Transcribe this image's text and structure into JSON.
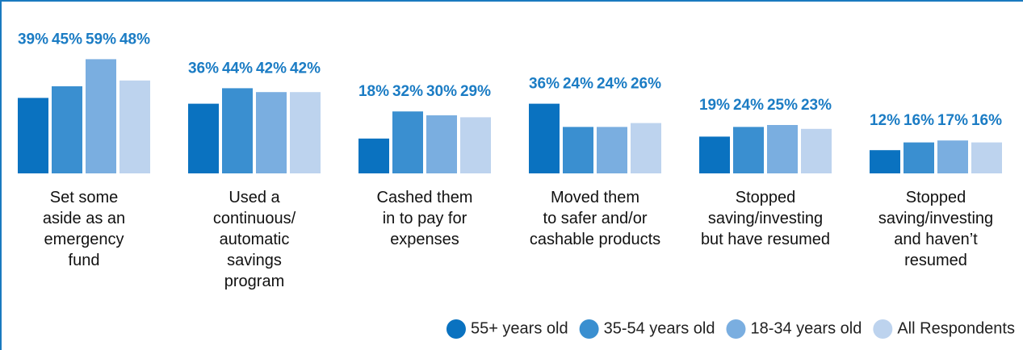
{
  "chart_data": {
    "type": "bar",
    "categories": [
      "Set some\naside as an\nemergency\nfund",
      "Used a\ncontinuous/\nautomatic\nsavings\nprogram",
      "Cashed them\nin to pay for\nexpenses",
      "Moved them\nto safer and/or\ncashable products",
      "Stopped\nsaving/investing\nbut have resumed",
      "Stopped\nsaving/investing\nand haven’t\nresumed"
    ],
    "series": [
      {
        "name": "55+ years old",
        "color": "#0a72c0",
        "values": [
          39,
          36,
          18,
          36,
          19,
          12
        ],
        "value_labels": [
          "39%",
          "36%",
          "18%",
          "36%",
          "19%",
          "12%"
        ]
      },
      {
        "name": "35-54 years old",
        "color": "#3a8fd0",
        "values": [
          45,
          44,
          32,
          24,
          24,
          16
        ],
        "value_labels": [
          "45%",
          "44%",
          "32%",
          "24%",
          "24%",
          "16%"
        ]
      },
      {
        "name": "18-34 years old",
        "color": "#7aaee0",
        "values": [
          59,
          42,
          30,
          24,
          25,
          17
        ],
        "value_labels": [
          "59%",
          "42%",
          "30%",
          "24%",
          "25%",
          "17%"
        ]
      },
      {
        "name": "All Respondents",
        "color": "#bdd3ee",
        "values": [
          48,
          42,
          29,
          26,
          23,
          16
        ],
        "value_labels": [
          "48%",
          "42%",
          "29%",
          "26%",
          "23%",
          "16%"
        ]
      }
    ],
    "legend": "bottom-right"
  }
}
